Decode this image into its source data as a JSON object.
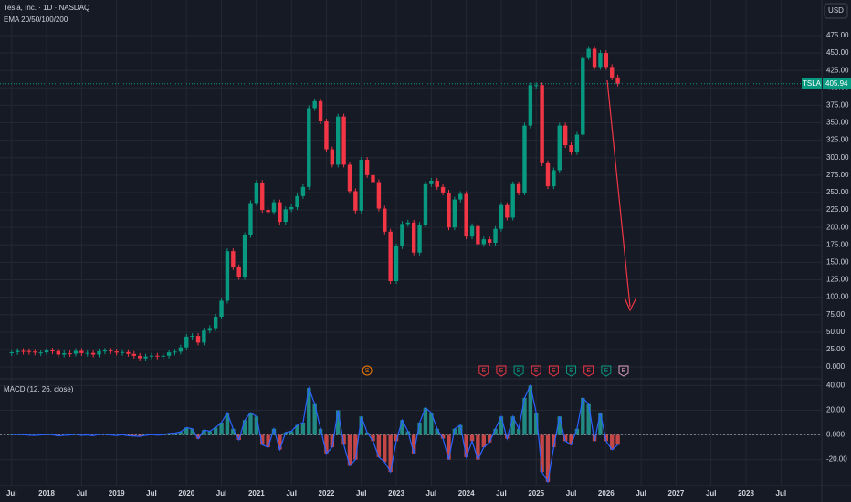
{
  "chart_data": {
    "type": "candlestick",
    "title": "Tesla, Inc. · 1D · NASDAQ",
    "subtitle": "EMA 20/50/100/200",
    "currency": "USD",
    "x": [
      "2017-07",
      "2017-08",
      "2017-09",
      "2017-10",
      "2017-11",
      "2017-12",
      "2018-01",
      "2018-02",
      "2018-03",
      "2018-04",
      "2018-05",
      "2018-06",
      "2018-07",
      "2018-08",
      "2018-09",
      "2018-10",
      "2018-11",
      "2018-12",
      "2019-01",
      "2019-02",
      "2019-03",
      "2019-04",
      "2019-05",
      "2019-06",
      "2019-07",
      "2019-08",
      "2019-09",
      "2019-10",
      "2019-11",
      "2019-12",
      "2020-01",
      "2020-02",
      "2020-03",
      "2020-04",
      "2020-05",
      "2020-06",
      "2020-07",
      "2020-08",
      "2020-09",
      "2020-10",
      "2020-11",
      "2020-12",
      "2021-01",
      "2021-02",
      "2021-03",
      "2021-04",
      "2021-05",
      "2021-06",
      "2021-07",
      "2021-08",
      "2021-09",
      "2021-10",
      "2021-11",
      "2021-12",
      "2022-01",
      "2022-02",
      "2022-03",
      "2022-04",
      "2022-05",
      "2022-06",
      "2022-07",
      "2022-08",
      "2022-09",
      "2022-10",
      "2022-11",
      "2022-12",
      "2023-01",
      "2023-02",
      "2023-03",
      "2023-04",
      "2023-05",
      "2023-06",
      "2023-07",
      "2023-08",
      "2023-09",
      "2023-10",
      "2023-11",
      "2023-12",
      "2024-01",
      "2024-02",
      "2024-03",
      "2024-04",
      "2024-05",
      "2024-06",
      "2024-07",
      "2024-08",
      "2024-09",
      "2024-10",
      "2024-11",
      "2024-12",
      "2025-01",
      "2025-02",
      "2025-03",
      "2025-04",
      "2025-05",
      "2025-06",
      "2025-07",
      "2025-08",
      "2025-09",
      "2025-10",
      "2025-11",
      "2025-12",
      "2026-01",
      "2026-02",
      "2026-03"
    ],
    "series": [
      {
        "name": "TSLA",
        "up_color": "#089981",
        "down_color": "#f23645",
        "values": [
          21,
          23,
          22.7,
          22,
          20.6,
          20.8,
          23.6,
          22.9,
          17.7,
          19.6,
          18.9,
          22.9,
          19.9,
          20.1,
          17.7,
          22.5,
          23.5,
          22.2,
          20.5,
          21.3,
          18.7,
          15.9,
          12.3,
          14.9,
          16.1,
          15,
          16.1,
          20.9,
          21.9,
          27.9,
          43.4,
          44.5,
          34.9,
          52.1,
          55.7,
          72,
          95,
          166,
          143,
          129,
          189,
          235,
          264,
          225,
          222,
          236,
          208,
          226,
          229,
          245,
          258,
          371,
          381,
          352,
          312,
          290,
          359,
          290,
          252,
          224,
          297,
          275,
          265,
          227,
          194,
          123,
          173,
          205,
          207,
          164,
          204,
          262,
          267,
          258,
          250,
          200,
          240,
          248,
          187,
          202,
          176,
          183,
          178,
          198,
          232,
          214,
          262,
          250,
          346,
          404,
          404,
          292,
          259,
          282,
          346,
          318,
          308,
          333,
          444,
          456,
          430,
          450,
          430,
          415,
          406
        ]
      }
    ],
    "last_price": 405.94,
    "xlim": [
      "2017-05",
      "2029-02"
    ],
    "xticks": [
      {
        "value": "2017-07",
        "label": "Jul"
      },
      {
        "value": "2018-01",
        "label": "2018"
      },
      {
        "value": "2018-07",
        "label": "Jul"
      },
      {
        "value": "2019-01",
        "label": "2019"
      },
      {
        "value": "2019-07",
        "label": "Jul"
      },
      {
        "value": "2020-01",
        "label": "2020"
      },
      {
        "value": "2020-07",
        "label": "Jul"
      },
      {
        "value": "2021-01",
        "label": "2021"
      },
      {
        "value": "2021-07",
        "label": "Jul"
      },
      {
        "value": "2022-01",
        "label": "2022"
      },
      {
        "value": "2022-07",
        "label": "Jul"
      },
      {
        "value": "2023-01",
        "label": "2023"
      },
      {
        "value": "2023-07",
        "label": "Jul"
      },
      {
        "value": "2024-01",
        "label": "2024"
      },
      {
        "value": "2024-07",
        "label": "Jul"
      },
      {
        "value": "2025-01",
        "label": "2025"
      },
      {
        "value": "2025-07",
        "label": "Jul"
      },
      {
        "value": "2026-01",
        "label": "2026"
      },
      {
        "value": "2026-07",
        "label": "Jul"
      },
      {
        "value": "2027-01",
        "label": "2027"
      },
      {
        "value": "2027-07",
        "label": "Jul"
      },
      {
        "value": "2028-01",
        "label": "2028"
      },
      {
        "value": "2028-07",
        "label": "Jul"
      }
    ],
    "ylim": [
      -13,
      526
    ],
    "yticks": [
      {
        "value": 0,
        "label": "0.000"
      },
      {
        "value": 25,
        "label": "25.00"
      },
      {
        "value": 50,
        "label": "50.00"
      },
      {
        "value": 75,
        "label": "75.00"
      },
      {
        "value": 100,
        "label": "100.00"
      },
      {
        "value": 125,
        "label": "125.00"
      },
      {
        "value": 150,
        "label": "150.00"
      },
      {
        "value": 175,
        "label": "175.00"
      },
      {
        "value": 200,
        "label": "200.00"
      },
      {
        "value": 225,
        "label": "225.00"
      },
      {
        "value": 250,
        "label": "250.00"
      },
      {
        "value": 275,
        "label": "275.00"
      },
      {
        "value": 300,
        "label": "300.00"
      },
      {
        "value": 325,
        "label": "325.00"
      },
      {
        "value": 350,
        "label": "350.00"
      },
      {
        "value": 375,
        "label": "375.00"
      },
      {
        "value": 400,
        "label": "400.00"
      },
      {
        "value": 425,
        "label": "425.00"
      },
      {
        "value": 450,
        "label": "450.00"
      },
      {
        "value": 475,
        "label": "475.00"
      }
    ],
    "grid": true,
    "events": [
      {
        "x": "2022-08",
        "label": "S",
        "color": "#f57c00"
      },
      {
        "x": "2024-04",
        "label": "E",
        "color": "#f23645"
      },
      {
        "x": "2024-07",
        "label": "E",
        "color": "#f23645"
      },
      {
        "x": "2024-10",
        "label": "E",
        "color": "#089981"
      },
      {
        "x": "2025-01",
        "label": "E",
        "color": "#f23645"
      },
      {
        "x": "2025-04",
        "label": "E",
        "color": "#f23645"
      },
      {
        "x": "2025-07",
        "label": "E",
        "color": "#089981"
      },
      {
        "x": "2025-10",
        "label": "E",
        "color": "#f23645"
      },
      {
        "x": "2026-01",
        "label": "E",
        "color": "#089981"
      },
      {
        "x": "2026-04",
        "label": "E",
        "color": "#e0a0c0"
      }
    ],
    "macd": {
      "title": "MACD (12, 26, close)",
      "color": "#2962ff",
      "up_color": "#26a69a",
      "down_color": "#ef5350",
      "values": [
        0.3,
        0.5,
        0.2,
        -0.2,
        -0.4,
        0,
        0.5,
        0.2,
        -0.8,
        -0.3,
        0,
        0.6,
        -0.4,
        0,
        -0.6,
        0.5,
        0.6,
        0,
        -0.5,
        0.2,
        -0.6,
        -0.9,
        -1.2,
        -0.3,
        0.3,
        -0.2,
        0.2,
        1.2,
        1.5,
        2.5,
        6,
        5,
        -3,
        4,
        3,
        6,
        10,
        18,
        5,
        -4,
        12,
        18,
        15,
        -8,
        -10,
        5,
        -12,
        2,
        3,
        8,
        10,
        38,
        25,
        5,
        -15,
        -10,
        20,
        -8,
        -25,
        -20,
        15,
        2,
        -5,
        -18,
        -22,
        -30,
        -5,
        12,
        3,
        -15,
        10,
        22,
        18,
        5,
        -3,
        -20,
        5,
        8,
        -18,
        -5,
        -20,
        -10,
        -6,
        5,
        15,
        -3,
        15,
        5,
        30,
        40,
        18,
        -30,
        -38,
        -10,
        15,
        -5,
        -8,
        5,
        30,
        25,
        -5,
        18,
        -5,
        -12,
        -8
      ],
      "ylim": [
        -41,
        44
      ],
      "yticks": [
        {
          "value": 40,
          "label": "40.00"
        },
        {
          "value": 20,
          "label": "20.00"
        },
        {
          "value": 0,
          "label": "0.000"
        },
        {
          "value": -20,
          "label": "-20.00"
        }
      ]
    }
  }
}
